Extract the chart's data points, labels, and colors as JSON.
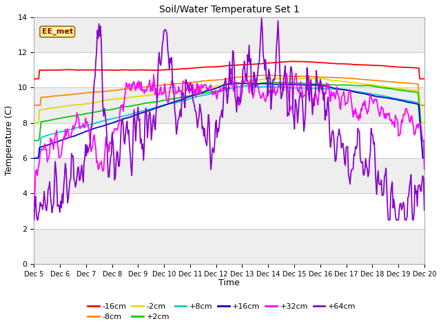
{
  "title": "Soil/Water Temperature Set 1",
  "xlabel": "Time",
  "ylabel": "Temperature (C)",
  "ylim": [
    0,
    14
  ],
  "yticks": [
    0,
    2,
    4,
    6,
    8,
    10,
    12,
    14
  ],
  "xtick_labels": [
    "Dec 5",
    "Dec 6",
    "Dec 7",
    "Dec 8",
    "Dec 9",
    "Dec 10",
    "Dec 11",
    "Dec 12",
    "Dec 13",
    "Dec 14",
    "Dec 15",
    "Dec 16",
    "Dec 17",
    "Dec 18",
    "Dec 19",
    "Dec 20"
  ],
  "annotation_text": "EE_met",
  "annotation_color": "#8B0000",
  "annotation_bg": "#FFFF99",
  "annotation_border": "#8B6914",
  "series_colors": {
    "-16cm": "#ff0000",
    "-8cm": "#ff8800",
    "-2cm": "#dddd00",
    "+2cm": "#00cc00",
    "+8cm": "#00cccc",
    "+16cm": "#0000cc",
    "+32cm": "#ff00ff",
    "+64cm": "#8800cc"
  },
  "bg_bands": [
    "#e8e8e8",
    "#ffffff"
  ],
  "grid_color": "#cccccc"
}
